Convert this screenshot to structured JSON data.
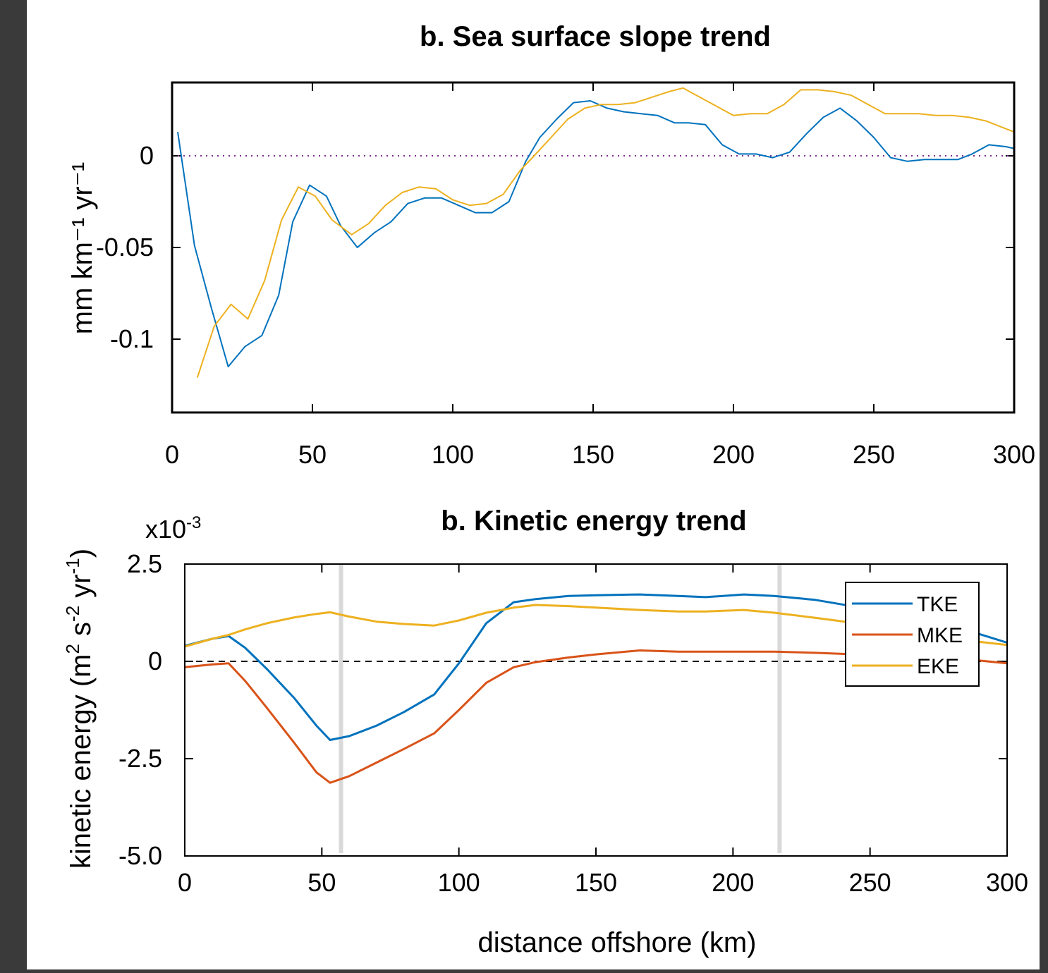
{
  "figure": {
    "background": "#3a3a3a",
    "series_colors": {
      "blue": "#0072BD",
      "orange": "#D95319",
      "yellow": "#EDB120"
    }
  },
  "chart_data": [
    {
      "type": "line",
      "title": "b. Sea surface slope trend",
      "xlabel": "",
      "ylabel": "mm km⁻¹ yr⁻¹",
      "xlim": [
        0,
        300
      ],
      "ylim": [
        -0.14,
        0.04
      ],
      "xticks": [
        0,
        50,
        100,
        150,
        200,
        250,
        300
      ],
      "xtick_labels": [
        "0",
        "50",
        "100",
        "150",
        "200",
        "250",
        "300"
      ],
      "yticks": [
        -0.1,
        -0.05,
        0
      ],
      "ytick_labels": [
        "-0.1",
        "-0.05",
        "0"
      ],
      "zero_line": {
        "style": "dotted",
        "color": "#7E2F8E"
      },
      "grid": false,
      "series": [
        {
          "color": "#0072BD",
          "x": [
            2,
            8,
            14,
            20,
            26,
            32,
            38,
            43,
            49,
            55,
            60,
            66,
            72,
            78,
            84,
            90,
            96,
            102,
            108,
            114,
            120,
            126,
            131,
            137,
            143,
            149,
            155,
            161,
            167,
            173,
            179,
            184,
            190,
            196,
            202,
            208,
            214,
            220,
            226,
            232,
            238,
            244,
            250,
            256,
            262,
            268,
            274,
            280,
            285,
            291,
            297,
            300
          ],
          "y": [
            0.013,
            -0.049,
            -0.083,
            -0.115,
            -0.104,
            -0.098,
            -0.076,
            -0.036,
            -0.016,
            -0.022,
            -0.038,
            -0.05,
            -0.042,
            -0.036,
            -0.026,
            -0.023,
            -0.023,
            -0.027,
            -0.031,
            -0.031,
            -0.025,
            -0.003,
            0.01,
            0.02,
            0.029,
            0.03,
            0.026,
            0.024,
            0.023,
            0.022,
            0.018,
            0.018,
            0.017,
            0.006,
            0.001,
            0.001,
            -0.001,
            0.002,
            0.012,
            0.021,
            0.026,
            0.019,
            0.01,
            -0.001,
            -0.003,
            -0.002,
            -0.002,
            -0.002,
            0.001,
            0.006,
            0.005,
            0.004
          ]
        },
        {
          "color": "#EDB120",
          "x": [
            9,
            15,
            21,
            27,
            33,
            39,
            45,
            51,
            57,
            64,
            70,
            76,
            82,
            88,
            94,
            100,
            106,
            112,
            118,
            124,
            129,
            135,
            141,
            147,
            153,
            159,
            165,
            171,
            177,
            182,
            188,
            194,
            200,
            206,
            212,
            218,
            224,
            230,
            236,
            242,
            248,
            254,
            260,
            266,
            272,
            278,
            284,
            290,
            295,
            300
          ],
          "y": [
            -0.121,
            -0.093,
            -0.081,
            -0.089,
            -0.068,
            -0.035,
            -0.017,
            -0.022,
            -0.035,
            -0.043,
            -0.037,
            -0.027,
            -0.02,
            -0.017,
            -0.018,
            -0.024,
            -0.027,
            -0.026,
            -0.021,
            -0.008,
            0.0,
            0.01,
            0.02,
            0.026,
            0.028,
            0.028,
            0.029,
            0.032,
            0.035,
            0.037,
            0.032,
            0.027,
            0.022,
            0.023,
            0.023,
            0.028,
            0.036,
            0.036,
            0.035,
            0.033,
            0.028,
            0.023,
            0.023,
            0.023,
            0.022,
            0.022,
            0.021,
            0.019,
            0.016,
            0.013
          ]
        }
      ]
    },
    {
      "type": "line",
      "title": "b. Kinetic energy trend",
      "xlabel": "distance offshore (km)",
      "ylabel_main": "kinetic energy (m",
      "ylabel_sup1": "2",
      "ylabel_mid": " s",
      "ylabel_sup2": "-2",
      "ylabel_mid2": " yr",
      "ylabel_sup3": "-1",
      "ylabel_end": ")",
      "scale_label": "x10",
      "scale_exp": "-3",
      "xlim": [
        0,
        300
      ],
      "ylim": [
        -5.0,
        2.5
      ],
      "xticks": [
        0,
        50,
        100,
        150,
        200,
        250,
        300
      ],
      "xtick_labels": [
        "0",
        "50",
        "100",
        "150",
        "200",
        "250",
        "300"
      ],
      "yticks": [
        2.5,
        0,
        -2.5,
        -5.0
      ],
      "ytick_labels": [
        "2.5",
        "0",
        "-2.5",
        "-5.0"
      ],
      "zero_line": {
        "style": "dashed",
        "color": "#000000"
      },
      "vertical_lines_x": [
        57,
        217
      ],
      "grid": false,
      "legend": {
        "placement": "top-right",
        "entries": [
          "TKE",
          "MKE",
          "EKE"
        ]
      },
      "series": [
        {
          "name": "TKE",
          "color": "#0072BD",
          "x": [
            0,
            10,
            16,
            22,
            30,
            40,
            48,
            53,
            60,
            70,
            80,
            91,
            100,
            110,
            120,
            128,
            140,
            150,
            166,
            180,
            190,
            204,
            215,
            230,
            245,
            260,
            275,
            290,
            300
          ],
          "y": [
            0.4,
            0.58,
            0.65,
            0.35,
            -0.2,
            -0.95,
            -1.65,
            -2.02,
            -1.92,
            -1.65,
            -1.3,
            -0.85,
            -0.05,
            0.98,
            1.52,
            1.6,
            1.68,
            1.7,
            1.72,
            1.68,
            1.65,
            1.72,
            1.68,
            1.58,
            1.4,
            1.2,
            0.95,
            0.7,
            0.48
          ]
        },
        {
          "name": "MKE",
          "color": "#D95319",
          "x": [
            0,
            10,
            16,
            22,
            30,
            40,
            48,
            53,
            60,
            70,
            80,
            91,
            100,
            110,
            120,
            128,
            140,
            150,
            166,
            180,
            190,
            204,
            215,
            230,
            245,
            260,
            275,
            290,
            300
          ],
          "y": [
            -0.15,
            -0.08,
            -0.05,
            -0.5,
            -1.2,
            -2.1,
            -2.85,
            -3.12,
            -2.95,
            -2.6,
            -2.25,
            -1.85,
            -1.25,
            -0.55,
            -0.15,
            -0.02,
            0.1,
            0.18,
            0.28,
            0.25,
            0.25,
            0.25,
            0.25,
            0.22,
            0.18,
            0.12,
            0.05,
            0.02,
            -0.05
          ]
        },
        {
          "name": "EKE",
          "color": "#EDB120",
          "x": [
            0,
            10,
            16,
            22,
            30,
            40,
            48,
            53,
            60,
            70,
            80,
            91,
            100,
            110,
            120,
            128,
            140,
            150,
            166,
            180,
            190,
            204,
            215,
            230,
            245,
            260,
            275,
            290,
            300
          ],
          "y": [
            0.38,
            0.58,
            0.68,
            0.82,
            0.98,
            1.13,
            1.22,
            1.26,
            1.15,
            1.02,
            0.96,
            0.92,
            1.05,
            1.25,
            1.38,
            1.45,
            1.42,
            1.38,
            1.32,
            1.28,
            1.28,
            1.32,
            1.25,
            1.12,
            0.98,
            0.82,
            0.65,
            0.5,
            0.42
          ]
        }
      ]
    }
  ]
}
